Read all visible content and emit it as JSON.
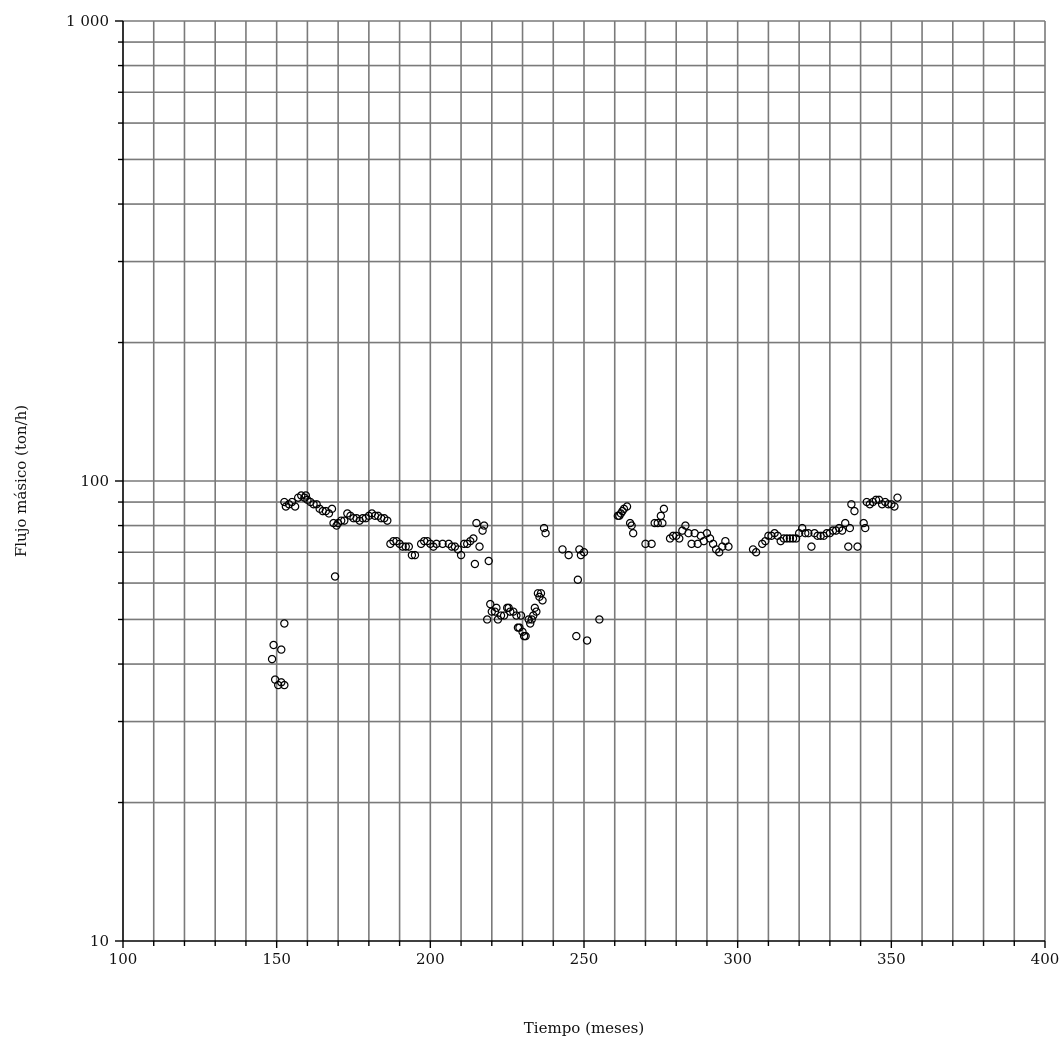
{
  "chart_data": {
    "type": "scatter",
    "xlabel": "Tiempo (meses)",
    "ylabel": "Flujo másico (ton/h)",
    "xlim": [
      100,
      400
    ],
    "ylim": [
      10,
      1000
    ],
    "yscale": "log",
    "grid": true,
    "x_ticks": [
      100,
      150,
      200,
      250,
      300,
      350,
      400
    ],
    "x_tick_labels": [
      "100",
      "150",
      "200",
      "250",
      "300",
      "350",
      "400"
    ],
    "y_ticks": [
      10,
      100,
      1000
    ],
    "y_tick_labels": [
      "10",
      "100",
      "1 000"
    ],
    "marker": "open-circle",
    "points": [
      [
        148.5,
        41
      ],
      [
        149,
        44
      ],
      [
        149.5,
        37
      ],
      [
        150.5,
        36
      ],
      [
        151.5,
        36.5
      ],
      [
        151.5,
        43
      ],
      [
        152.5,
        36
      ],
      [
        152.5,
        49
      ],
      [
        152.5,
        90
      ],
      [
        153,
        88
      ],
      [
        154,
        89
      ],
      [
        155,
        90
      ],
      [
        156,
        88
      ],
      [
        157,
        92
      ],
      [
        158,
        93
      ],
      [
        159,
        92
      ],
      [
        159.5,
        93
      ],
      [
        160,
        91
      ],
      [
        161,
        90
      ],
      [
        162,
        89
      ],
      [
        163,
        89
      ],
      [
        164,
        87
      ],
      [
        165,
        86
      ],
      [
        166,
        86
      ],
      [
        167,
        85
      ],
      [
        168,
        87
      ],
      [
        168.5,
        81
      ],
      [
        169,
        62
      ],
      [
        169.5,
        80
      ],
      [
        170,
        81
      ],
      [
        171,
        82
      ],
      [
        172,
        82
      ],
      [
        173,
        85
      ],
      [
        174,
        84
      ],
      [
        175,
        83
      ],
      [
        176,
        83
      ],
      [
        177,
        82
      ],
      [
        178,
        83
      ],
      [
        179,
        83
      ],
      [
        180,
        84
      ],
      [
        181,
        85
      ],
      [
        182,
        84
      ],
      [
        183,
        84
      ],
      [
        184,
        83
      ],
      [
        185,
        83
      ],
      [
        186,
        82
      ],
      [
        187,
        73
      ],
      [
        188,
        74
      ],
      [
        189,
        74
      ],
      [
        190,
        73
      ],
      [
        191,
        72
      ],
      [
        192,
        72
      ],
      [
        193,
        72
      ],
      [
        194,
        69
      ],
      [
        195,
        69
      ],
      [
        197,
        73
      ],
      [
        198,
        74
      ],
      [
        199,
        74
      ],
      [
        200,
        73
      ],
      [
        201,
        72
      ],
      [
        202,
        73
      ],
      [
        204,
        73
      ],
      [
        206,
        73
      ],
      [
        207,
        72
      ],
      [
        208,
        72
      ],
      [
        209,
        71
      ],
      [
        210,
        69
      ],
      [
        211,
        73
      ],
      [
        212,
        73
      ],
      [
        213,
        74
      ],
      [
        214,
        75
      ],
      [
        214.5,
        66
      ],
      [
        215,
        81
      ],
      [
        216,
        72
      ],
      [
        217,
        78
      ],
      [
        217.5,
        80
      ],
      [
        218.5,
        50
      ],
      [
        219,
        67
      ],
      [
        219.5,
        54
      ],
      [
        220,
        52
      ],
      [
        221,
        52
      ],
      [
        221.5,
        53
      ],
      [
        222,
        50
      ],
      [
        223,
        51
      ],
      [
        224,
        51
      ],
      [
        225,
        53
      ],
      [
        225.5,
        53
      ],
      [
        226,
        52
      ],
      [
        227,
        52
      ],
      [
        228,
        51
      ],
      [
        228.5,
        48
      ],
      [
        229,
        48
      ],
      [
        229.5,
        51
      ],
      [
        230,
        47
      ],
      [
        230.5,
        46
      ],
      [
        231,
        46
      ],
      [
        232,
        50
      ],
      [
        232.5,
        49
      ],
      [
        233,
        50
      ],
      [
        233.5,
        51
      ],
      [
        234,
        53
      ],
      [
        234.5,
        52
      ],
      [
        235,
        57
      ],
      [
        235.5,
        56
      ],
      [
        236,
        57
      ],
      [
        236.5,
        55
      ],
      [
        237,
        79
      ],
      [
        237.5,
        77
      ],
      [
        243,
        71
      ],
      [
        245,
        69
      ],
      [
        247.5,
        46
      ],
      [
        248,
        61
      ],
      [
        248.5,
        71
      ],
      [
        249,
        69
      ],
      [
        250,
        70
      ],
      [
        251,
        45
      ],
      [
        255,
        50
      ],
      [
        261,
        84
      ],
      [
        261.5,
        84
      ],
      [
        262,
        85
      ],
      [
        262.5,
        86
      ],
      [
        263,
        87
      ],
      [
        264,
        88
      ],
      [
        265,
        81
      ],
      [
        265.5,
        80
      ],
      [
        266,
        77
      ],
      [
        270,
        73
      ],
      [
        272,
        73
      ],
      [
        273,
        81
      ],
      [
        274,
        81
      ],
      [
        275,
        84
      ],
      [
        275.5,
        81
      ],
      [
        276,
        87
      ],
      [
        278,
        75
      ],
      [
        279,
        76
      ],
      [
        280,
        76
      ],
      [
        281,
        75
      ],
      [
        282,
        78
      ],
      [
        283,
        80
      ],
      [
        284,
        77
      ],
      [
        285,
        73
      ],
      [
        286,
        77
      ],
      [
        287,
        73
      ],
      [
        288,
        76
      ],
      [
        289,
        74
      ],
      [
        290,
        77
      ],
      [
        291,
        75
      ],
      [
        292,
        73
      ],
      [
        293,
        71
      ],
      [
        294,
        70
      ],
      [
        295,
        72
      ],
      [
        296,
        74
      ],
      [
        297,
        72
      ],
      [
        305,
        71
      ],
      [
        306,
        70
      ],
      [
        308,
        73
      ],
      [
        309,
        74
      ],
      [
        310,
        76
      ],
      [
        311,
        76
      ],
      [
        312,
        77
      ],
      [
        313,
        76
      ],
      [
        314,
        74
      ],
      [
        315,
        75
      ],
      [
        316,
        75
      ],
      [
        317,
        75
      ],
      [
        318,
        75
      ],
      [
        319,
        75
      ],
      [
        320,
        77
      ],
      [
        321,
        79
      ],
      [
        322,
        77
      ],
      [
        323,
        77
      ],
      [
        324,
        72
      ],
      [
        325,
        77
      ],
      [
        326,
        76
      ],
      [
        327,
        76
      ],
      [
        328,
        76
      ],
      [
        329,
        77
      ],
      [
        330,
        77
      ],
      [
        331,
        78
      ],
      [
        332,
        78
      ],
      [
        333,
        79
      ],
      [
        334,
        78
      ],
      [
        335,
        81
      ],
      [
        336,
        72
      ],
      [
        336.5,
        79
      ],
      [
        337,
        89
      ],
      [
        338,
        86
      ],
      [
        339,
        72
      ],
      [
        341,
        81
      ],
      [
        341.5,
        79
      ],
      [
        342,
        90
      ],
      [
        343,
        89
      ],
      [
        344,
        90
      ],
      [
        345,
        91
      ],
      [
        346,
        91
      ],
      [
        347,
        89
      ],
      [
        348,
        90
      ],
      [
        349,
        89
      ],
      [
        350,
        89
      ],
      [
        351,
        88
      ],
      [
        352,
        92
      ]
    ]
  }
}
